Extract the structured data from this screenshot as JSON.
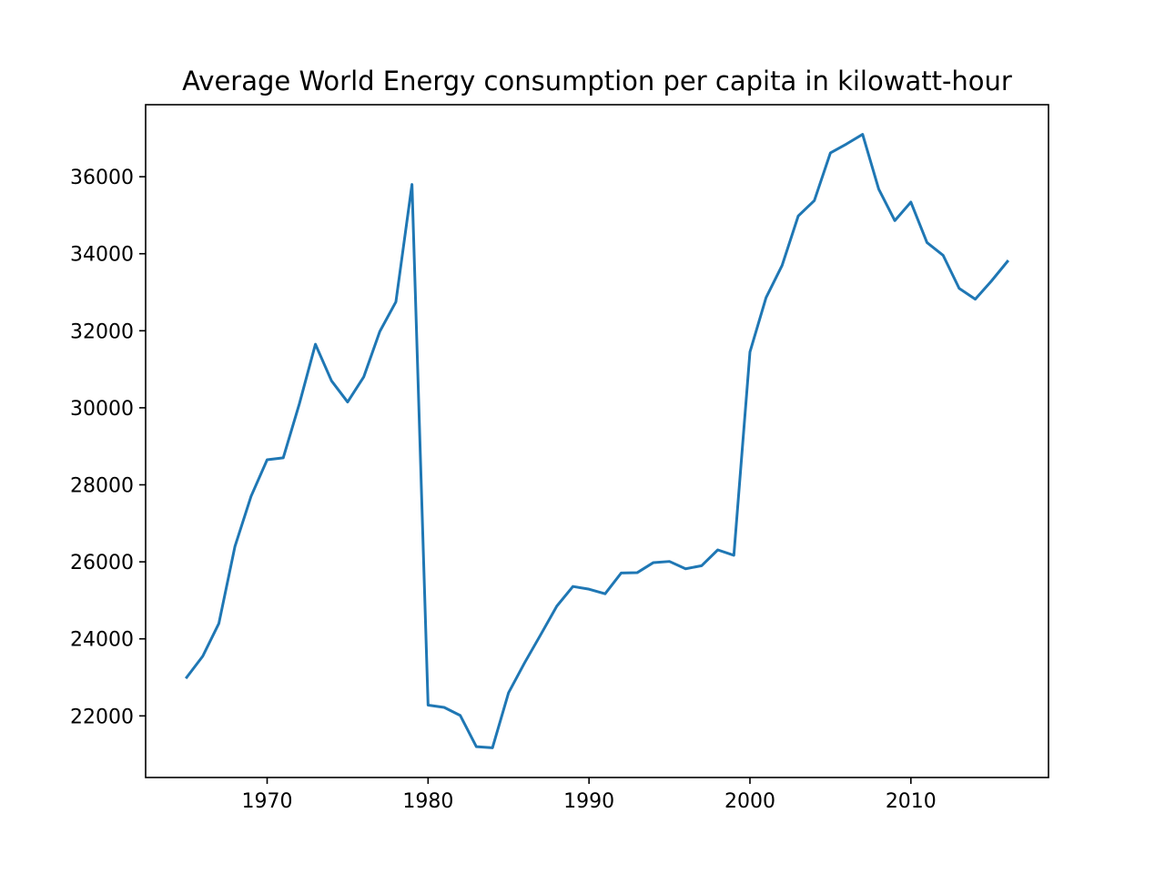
{
  "chart_data": {
    "type": "line",
    "title": "Average World Energy consumption per capita in kilowatt-hour",
    "xlabel": "",
    "ylabel": "",
    "xlim": [
      1962.45,
      2018.55
    ],
    "ylim": [
      20400,
      37870
    ],
    "x_ticks": [
      1970,
      1980,
      1990,
      2000,
      2010
    ],
    "x_tick_labels": [
      "1970",
      "1980",
      "1990",
      "2000",
      "2010"
    ],
    "y_ticks": [
      22000,
      24000,
      26000,
      28000,
      30000,
      32000,
      34000,
      36000
    ],
    "y_tick_labels": [
      "22000",
      "24000",
      "26000",
      "28000",
      "30000",
      "32000",
      "34000",
      "36000"
    ],
    "grid": false,
    "legend": "none",
    "series": [
      {
        "color": "#1f77b4",
        "x": [
          1965,
          1966,
          1967,
          1968,
          1969,
          1970,
          1971,
          1972,
          1973,
          1974,
          1975,
          1976,
          1977,
          1978,
          1979,
          1980,
          1981,
          1982,
          1983,
          1984,
          1985,
          1986,
          1987,
          1988,
          1989,
          1990,
          1991,
          1992,
          1993,
          1994,
          1995,
          1996,
          1997,
          1998,
          1999,
          2000,
          2001,
          2002,
          2003,
          2004,
          2005,
          2006,
          2007,
          2008,
          2009,
          2010,
          2011,
          2012,
          2013,
          2014,
          2015,
          2016
        ],
        "y": [
          23000,
          23550,
          24400,
          26400,
          27700,
          28650,
          28700,
          30100,
          31650,
          30700,
          30150,
          30800,
          31980,
          32750,
          35800,
          22280,
          22220,
          22010,
          21200,
          21170,
          22600,
          23380,
          24110,
          24850,
          25360,
          25290,
          25170,
          25710,
          25720,
          25980,
          26010,
          25820,
          25900,
          26310,
          26170,
          31450,
          32860,
          33700,
          34980,
          35380,
          36620,
          36850,
          37100,
          35680,
          34860,
          35340,
          34290,
          33960,
          33100,
          32820,
          33290,
          33800
        ]
      }
    ]
  }
}
